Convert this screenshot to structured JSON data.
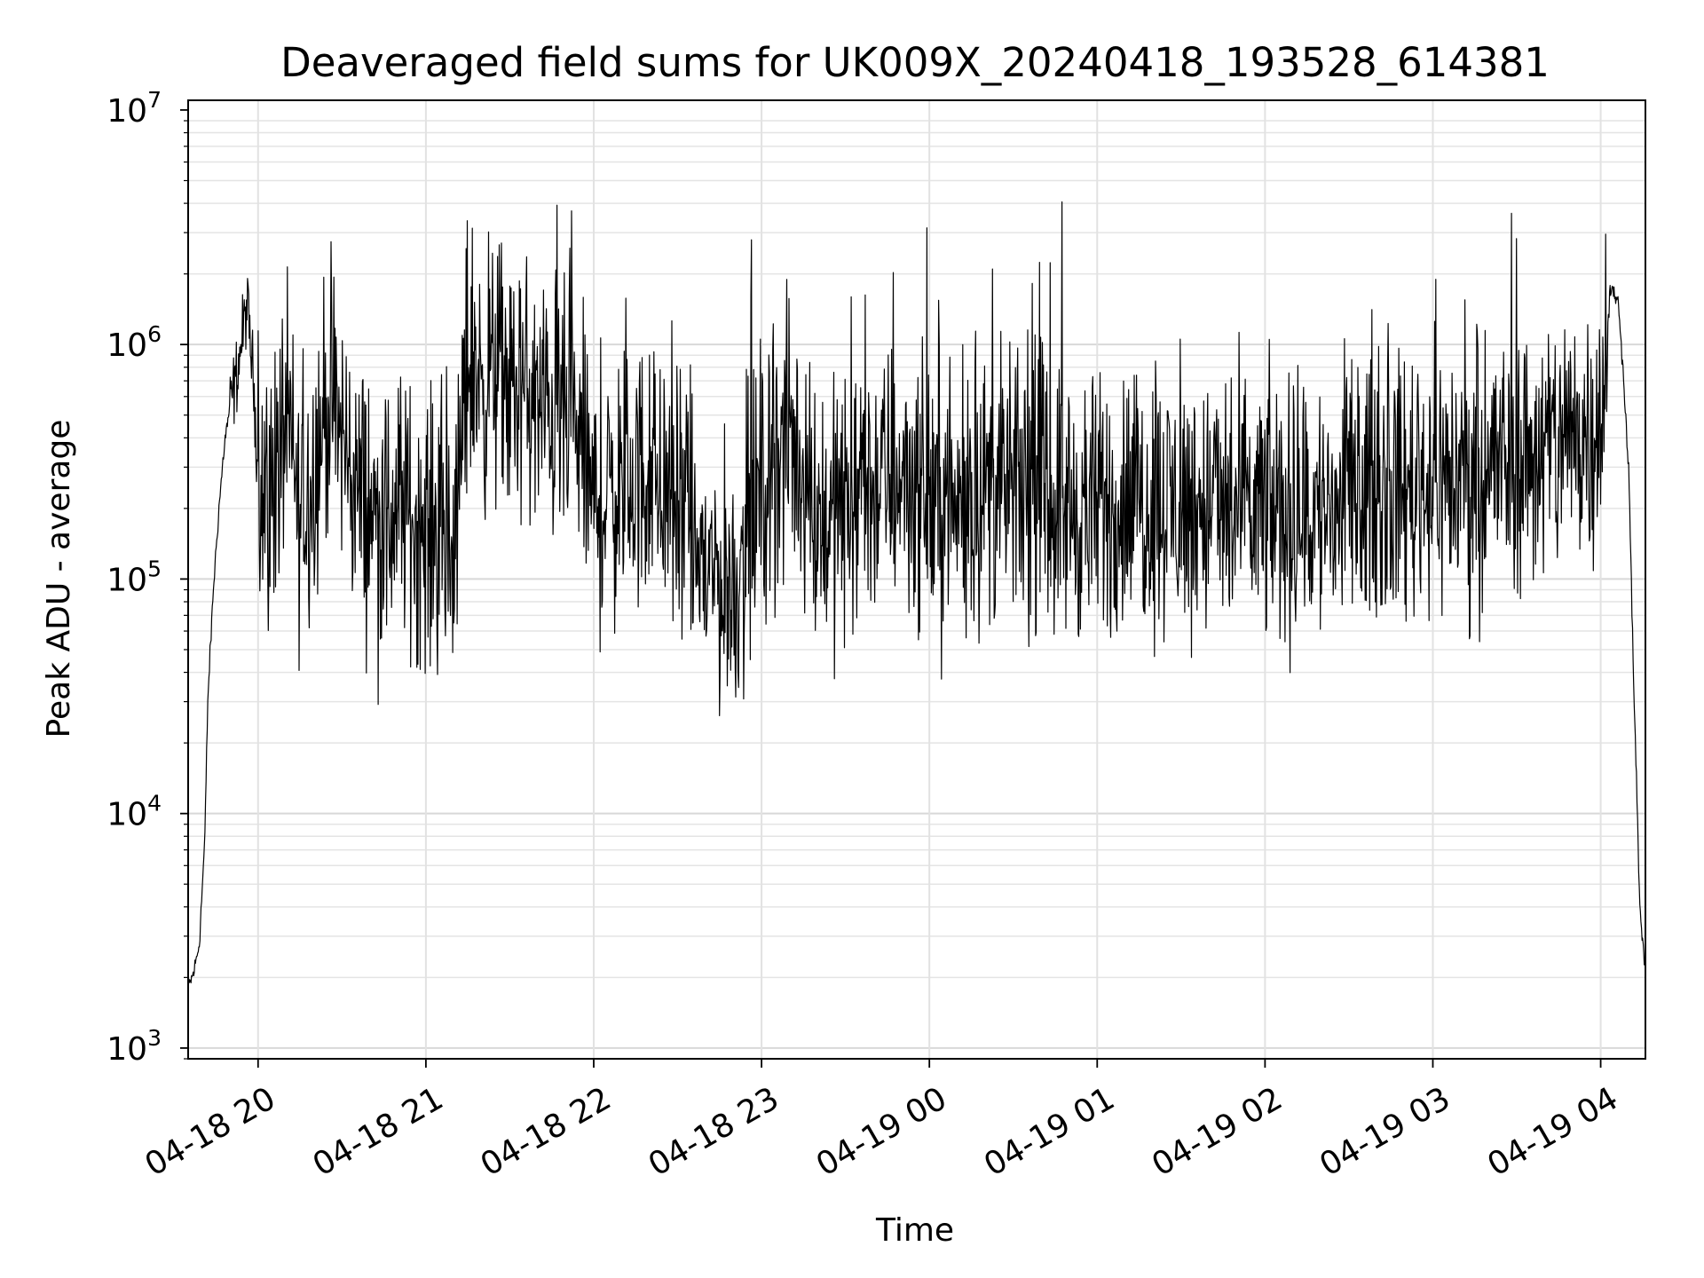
{
  "chart_data": {
    "type": "line",
    "title": "Deaveraged field sums for UK009X_20240418_193528_614381",
    "xlabel": "Time",
    "ylabel": "Peak ADU - average",
    "yscale": "log",
    "ylim": [
      900,
      11000000
    ],
    "xlim": [
      "2024-04-18 19:35",
      "2024-04-19 04:16"
    ],
    "grid": true,
    "x_ticks": [
      "04-18 20",
      "04-18 21",
      "04-18 22",
      "04-18 23",
      "04-19 00",
      "04-19 01",
      "04-19 02",
      "04-19 03",
      "04-19 04"
    ],
    "y_ticks": [
      {
        "base": "10",
        "exp": "3"
      },
      {
        "base": "10",
        "exp": "4"
      },
      {
        "base": "10",
        "exp": "5"
      },
      {
        "base": "10",
        "exp": "6"
      },
      {
        "base": "10",
        "exp": "7"
      }
    ],
    "series": [
      {
        "color": "#000000",
        "x": [
          "2024-04-18 19:35",
          "2024-04-18 19:37",
          "2024-04-18 19:39",
          "2024-04-18 19:41",
          "2024-04-18 19:42",
          "2024-04-18 19:44",
          "2024-04-18 19:46",
          "2024-04-18 19:48",
          "2024-04-18 19:50",
          "2024-04-18 19:52",
          "2024-04-18 19:54",
          "2024-04-18 19:56",
          "2024-04-18 19:58",
          "2024-04-18 20:00",
          "2024-04-18 20:05",
          "2024-04-18 20:10",
          "2024-04-18 20:15",
          "2024-04-18 20:20",
          "2024-04-18 20:25",
          "2024-04-18 20:30",
          "2024-04-18 20:35",
          "2024-04-18 20:40",
          "2024-04-18 20:45",
          "2024-04-18 20:50",
          "2024-04-18 20:55",
          "2024-04-18 21:00",
          "2024-04-18 21:05",
          "2024-04-18 21:10",
          "2024-04-18 21:15",
          "2024-04-18 21:20",
          "2024-04-18 21:25",
          "2024-04-18 21:30",
          "2024-04-18 21:35",
          "2024-04-18 21:40",
          "2024-04-18 21:45",
          "2024-04-18 21:50",
          "2024-04-18 21:55",
          "2024-04-18 22:00",
          "2024-04-18 22:10",
          "2024-04-18 22:20",
          "2024-04-18 22:30",
          "2024-04-18 22:40",
          "2024-04-18 22:50",
          "2024-04-18 23:00",
          "2024-04-18 23:10",
          "2024-04-18 23:20",
          "2024-04-18 23:30",
          "2024-04-18 23:40",
          "2024-04-18 23:50",
          "2024-04-19 00:00",
          "2024-04-19 00:10",
          "2024-04-19 00:20",
          "2024-04-19 00:30",
          "2024-04-19 00:40",
          "2024-04-19 00:50",
          "2024-04-19 01:00",
          "2024-04-19 01:10",
          "2024-04-19 01:20",
          "2024-04-19 01:30",
          "2024-04-19 01:40",
          "2024-04-19 01:50",
          "2024-04-19 02:00",
          "2024-04-19 02:10",
          "2024-04-19 02:20",
          "2024-04-19 02:30",
          "2024-04-19 02:40",
          "2024-04-19 02:50",
          "2024-04-19 03:00",
          "2024-04-19 03:10",
          "2024-04-19 03:20",
          "2024-04-19 03:30",
          "2024-04-19 03:40",
          "2024-04-19 03:50",
          "2024-04-19 04:00",
          "2024-04-19 04:03",
          "2024-04-19 04:06",
          "2024-04-19 04:08",
          "2024-04-19 04:10",
          "2024-04-19 04:12",
          "2024-04-19 04:14",
          "2024-04-19 04:16"
        ],
        "y": [
          1800,
          2100,
          2800,
          8000,
          30000,
          90000,
          200000,
          380000,
          550000,
          700000,
          1000000,
          1500000,
          800000,
          300000,
          200000,
          500000,
          180000,
          300000,
          600000,
          400000,
          250000,
          200000,
          150000,
          220000,
          180000,
          160000,
          150000,
          120000,
          900000,
          700000,
          800000,
          600000,
          650000,
          500000,
          550000,
          450000,
          400000,
          200000,
          250000,
          280000,
          200000,
          110000,
          90000,
          250000,
          400000,
          180000,
          200000,
          250000,
          280000,
          220000,
          200000,
          250000,
          230000,
          240000,
          200000,
          190000,
          210000,
          220000,
          200000,
          210000,
          180000,
          200000,
          180000,
          190000,
          200000,
          250000,
          240000,
          280000,
          260000,
          300000,
          320000,
          350000,
          400000,
          480000,
          1700000,
          1600000,
          800000,
          300000,
          30000,
          4000,
          2000
        ]
      }
    ]
  }
}
